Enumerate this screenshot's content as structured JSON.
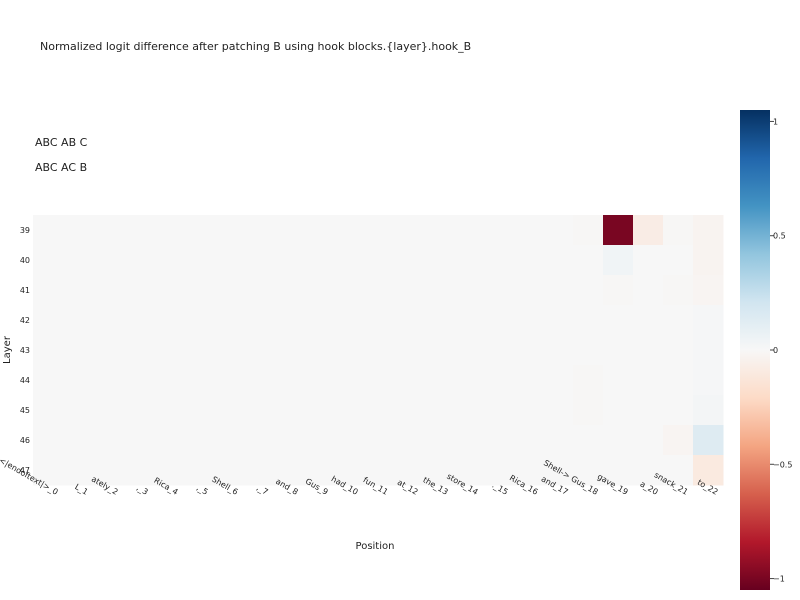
{
  "chart_data": {
    "type": "heatmap",
    "title": "Normalized logit difference after patching B using hook blocks.{layer}.hook_B",
    "annotations": [
      "ABC AB C",
      "ABC AC B"
    ],
    "xlabel": "Position",
    "ylabel": "Layer",
    "x_categories": [
      "<|endoftext|>_0",
      "L_1",
      "ately_2",
      ",_3",
      "Rica_4",
      ",_5",
      "Shell_6",
      ",_7",
      "and_8",
      "Gus_9",
      "had_10",
      "fun_11",
      "at_12",
      "the_13",
      "store_14",
      "._15",
      "Rica_16",
      "and_17",
      "Shell-> Gus_18",
      "gave_19",
      "a_20",
      "snack_21",
      "to_22"
    ],
    "y_categories": [
      "39",
      "40",
      "41",
      "42",
      "43",
      "44",
      "45",
      "46",
      "47"
    ],
    "values": [
      [
        0,
        0,
        0,
        0,
        0,
        0,
        0,
        0,
        0,
        0,
        0,
        0,
        0,
        0,
        0,
        0,
        0,
        0,
        -0.01,
        -1.0,
        -0.08,
        -0.01,
        -0.03
      ],
      [
        0,
        0,
        0,
        0,
        0,
        0,
        0,
        0,
        0,
        0,
        0,
        0,
        0,
        0,
        0,
        0,
        0,
        0,
        0,
        0.04,
        0,
        0,
        -0.03
      ],
      [
        0,
        0,
        0,
        0,
        0,
        0,
        0,
        0,
        0,
        0,
        0,
        0,
        0,
        0,
        0,
        0,
        0,
        0,
        0,
        -0.01,
        0,
        -0.01,
        -0.02
      ],
      [
        0,
        0,
        0,
        0,
        0,
        0,
        0,
        0,
        0,
        0,
        0,
        0,
        0,
        0,
        0,
        0,
        0,
        0,
        0,
        0,
        0,
        0,
        0.01
      ],
      [
        0,
        0,
        0,
        0,
        0,
        0,
        0,
        0,
        0,
        0,
        0,
        0,
        0,
        0,
        0,
        0,
        0,
        0,
        0,
        0,
        0,
        0,
        0.01
      ],
      [
        0,
        0,
        0,
        0,
        0,
        0,
        0,
        0,
        0,
        0,
        0,
        0,
        0,
        0,
        0,
        0,
        0,
        0,
        -0.01,
        0,
        0,
        0,
        0.01
      ],
      [
        0,
        0,
        0,
        0,
        0,
        0,
        0,
        0,
        0,
        0,
        0,
        0,
        0,
        0,
        0,
        0,
        0,
        0,
        -0.01,
        0,
        0,
        0,
        0.02
      ],
      [
        0,
        0,
        0,
        0,
        0,
        0,
        0,
        0,
        0,
        0,
        0,
        0,
        0,
        0,
        0,
        0,
        0,
        0,
        0,
        0,
        0,
        -0.02,
        0.14
      ],
      [
        0,
        0,
        0,
        0,
        0,
        0,
        0,
        0,
        0,
        0,
        0,
        0,
        0,
        0,
        0,
        0,
        0,
        0,
        0,
        0,
        0,
        0,
        -0.1
      ]
    ],
    "zlim": [
      -1.05,
      1.05
    ],
    "colorbar_ticks": [
      1,
      0.5,
      0,
      -0.5,
      -1
    ],
    "colorbar_tick_labels": [
      "1",
      "0.5",
      "0",
      "−0.5",
      "−1"
    ],
    "colorscale": "RdBu",
    "colorscale_stops": [
      "#67001f",
      "#b2182b",
      "#d6604d",
      "#f4a582",
      "#fddbc7",
      "#f7f7f7",
      "#d1e5f0",
      "#92c5de",
      "#4393c3",
      "#2166ac",
      "#053061"
    ],
    "legend": "colorbar-right"
  }
}
